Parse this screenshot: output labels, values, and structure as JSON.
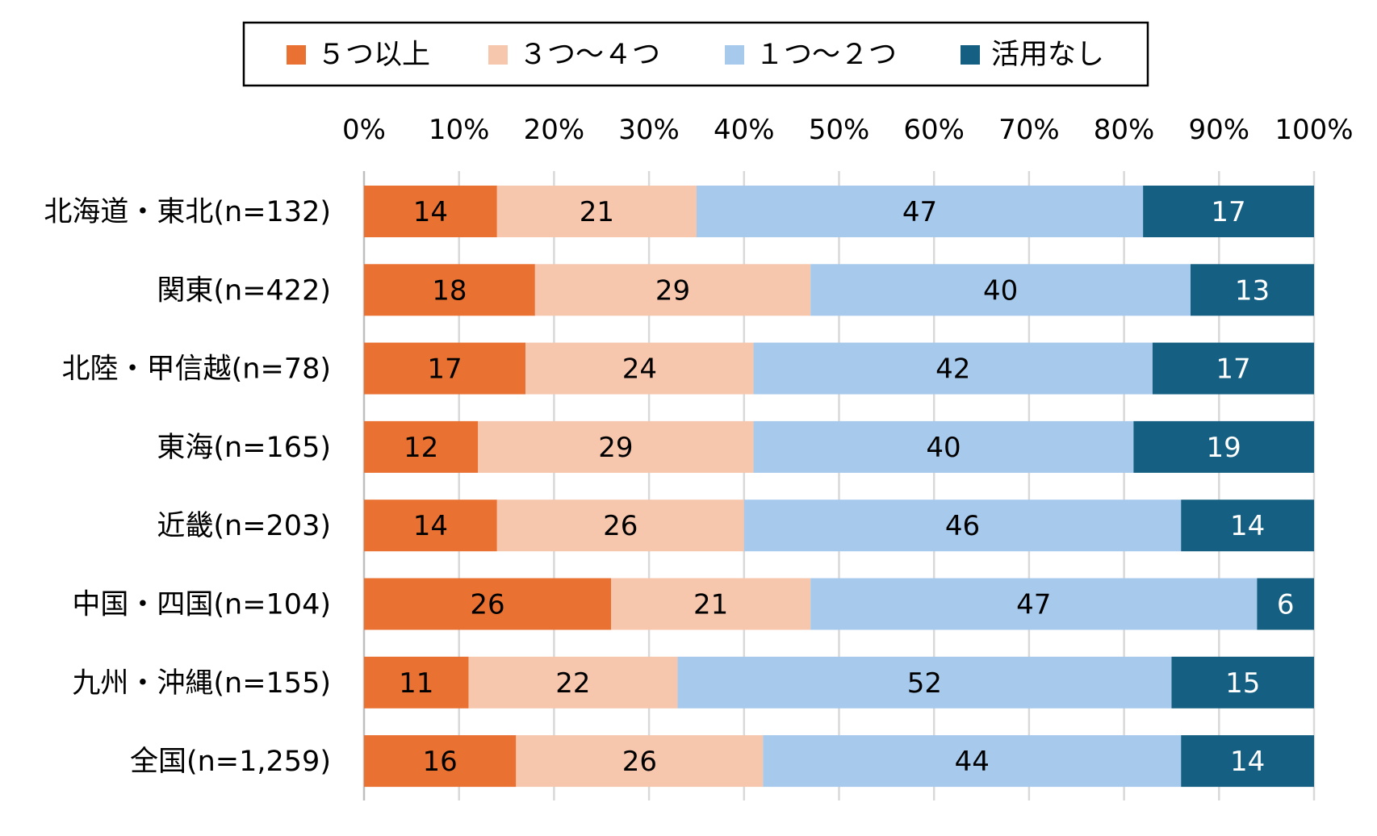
{
  "chart_data": {
    "type": "stacked-bar-horizontal-percent",
    "title": "",
    "xlabel": "",
    "ylabel": "",
    "xlim": [
      0,
      100
    ],
    "x_ticks": [
      "0%",
      "10%",
      "20%",
      "30%",
      "40%",
      "50%",
      "60%",
      "70%",
      "80%",
      "90%",
      "100%"
    ],
    "grid": true,
    "legend_position": "top",
    "categories": [
      "北海道・東北(n=132)",
      "関東(n=422)",
      "北陸・甲信越(n=78)",
      "東海(n=165)",
      "近畿(n=203)",
      "中国・四国(n=104)",
      "九州・沖縄(n=155)",
      "全国(n=1,259)"
    ],
    "series": [
      {
        "name": "５つ以上",
        "color": "#E97132",
        "label_color": "#000000",
        "values": [
          14,
          18,
          17,
          12,
          14,
          26,
          11,
          16
        ]
      },
      {
        "name": "３つ～４つ",
        "color": "#F6C6AD",
        "label_color": "#000000",
        "values": [
          21,
          29,
          24,
          29,
          26,
          21,
          22,
          26
        ]
      },
      {
        "name": "１つ～２つ",
        "color": "#A6C9EC",
        "label_color": "#000000",
        "values": [
          47,
          40,
          42,
          40,
          46,
          47,
          52,
          44
        ]
      },
      {
        "name": "活用なし",
        "color": "#156082",
        "label_color": "#FFFFFF",
        "values": [
          17,
          13,
          17,
          19,
          14,
          6,
          15,
          14
        ]
      }
    ]
  }
}
